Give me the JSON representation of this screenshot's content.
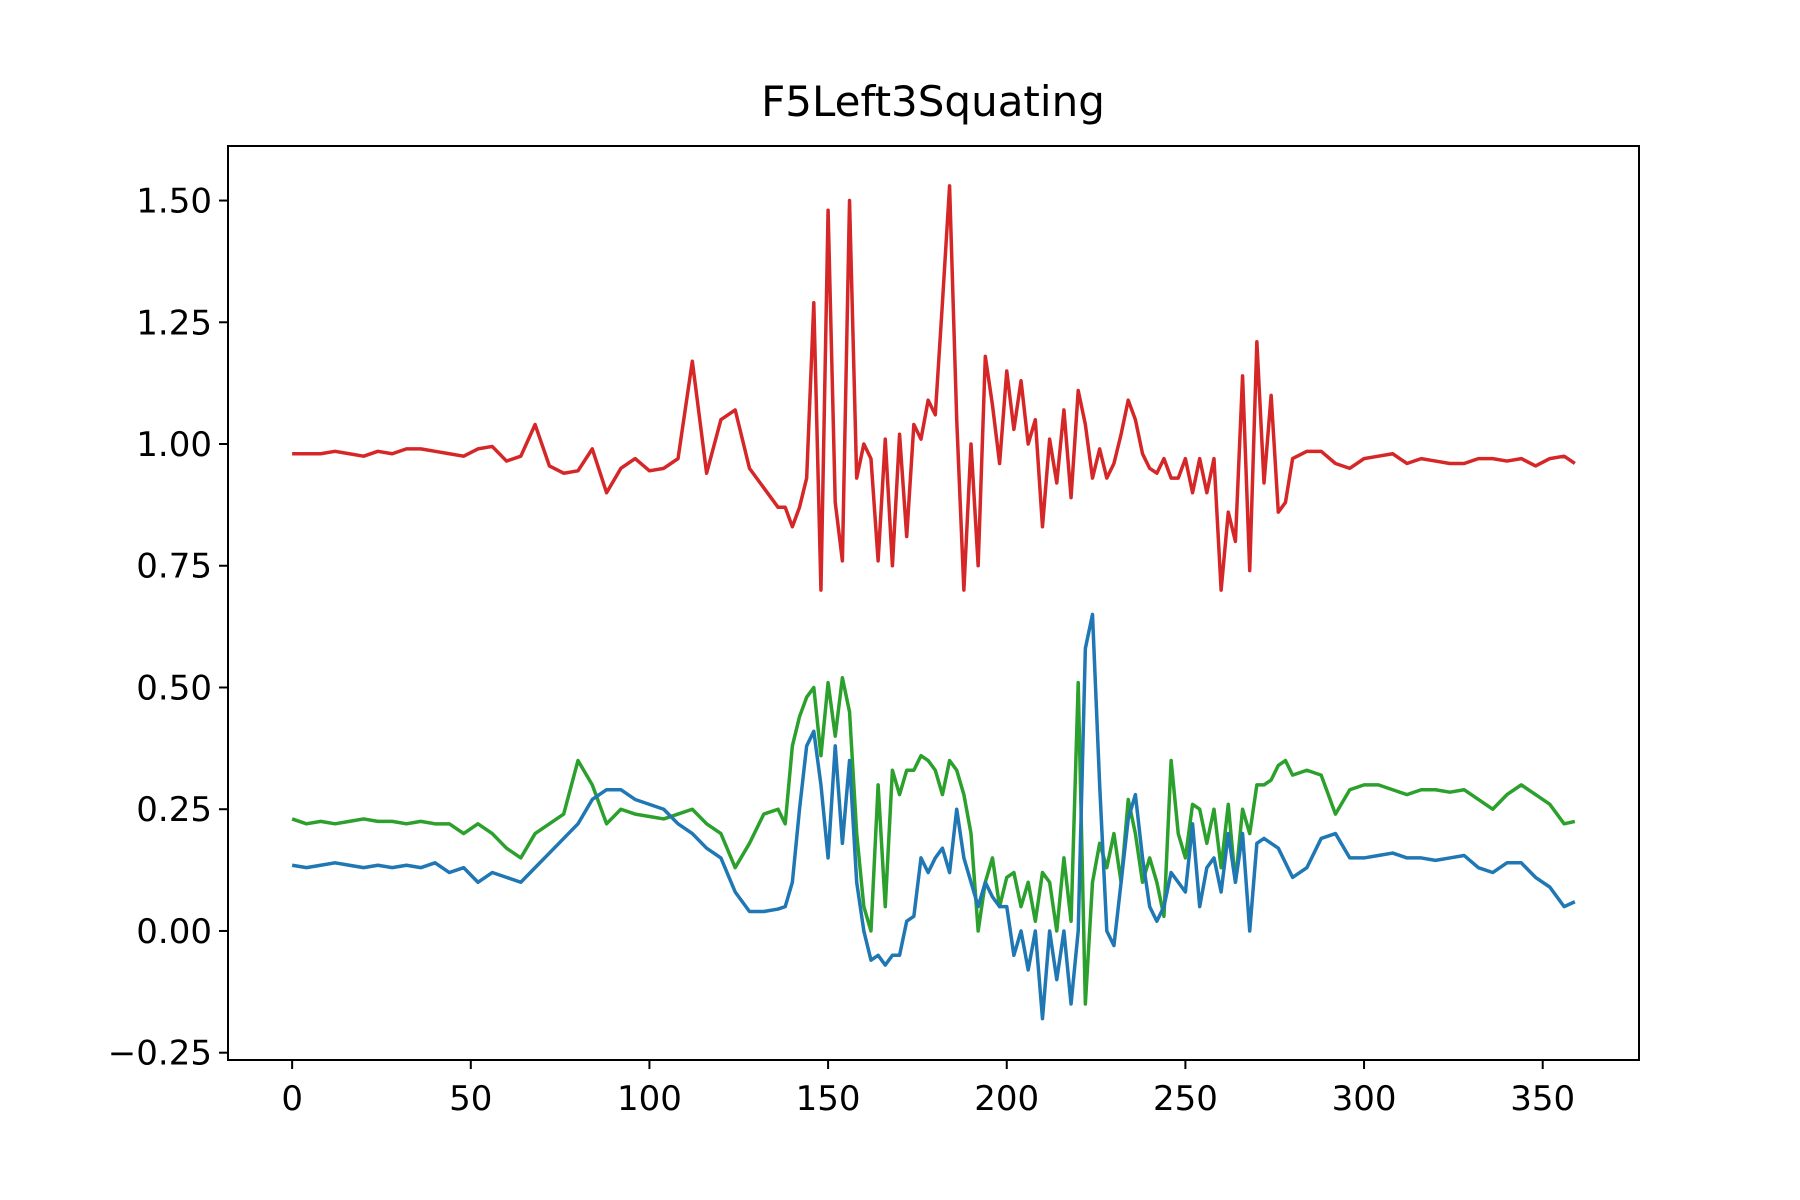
{
  "chart_data": {
    "type": "line",
    "title": "F5Left3Squating",
    "x": [
      0,
      4,
      8,
      12,
      16,
      20,
      24,
      28,
      32,
      36,
      40,
      44,
      48,
      52,
      56,
      60,
      64,
      68,
      72,
      76,
      80,
      84,
      88,
      92,
      96,
      100,
      104,
      108,
      112,
      116,
      120,
      124,
      128,
      132,
      136,
      138,
      140,
      142,
      144,
      146,
      148,
      150,
      152,
      154,
      156,
      158,
      160,
      162,
      164,
      166,
      168,
      170,
      172,
      174,
      176,
      178,
      180,
      182,
      184,
      186,
      188,
      190,
      192,
      194,
      196,
      198,
      200,
      202,
      204,
      206,
      208,
      210,
      212,
      214,
      216,
      218,
      220,
      222,
      224,
      226,
      228,
      230,
      232,
      234,
      236,
      238,
      240,
      242,
      244,
      246,
      248,
      250,
      252,
      254,
      256,
      258,
      260,
      262,
      264,
      266,
      268,
      270,
      272,
      274,
      276,
      278,
      280,
      284,
      288,
      292,
      296,
      300,
      304,
      308,
      312,
      316,
      320,
      324,
      328,
      332,
      336,
      340,
      344,
      348,
      352,
      356,
      359
    ],
    "series": [
      {
        "color": "#d62728",
        "values": [
          0.98,
          0.98,
          0.98,
          0.985,
          0.98,
          0.975,
          0.985,
          0.98,
          0.99,
          0.99,
          0.985,
          0.98,
          0.975,
          0.99,
          0.995,
          0.965,
          0.975,
          1.04,
          0.955,
          0.94,
          0.945,
          0.99,
          0.9,
          0.95,
          0.97,
          0.945,
          0.95,
          0.97,
          1.17,
          0.94,
          1.05,
          1.07,
          0.95,
          0.91,
          0.87,
          0.87,
          0.83,
          0.87,
          0.93,
          1.29,
          0.7,
          1.48,
          0.88,
          0.76,
          1.5,
          0.93,
          1.0,
          0.97,
          0.76,
          1.01,
          0.75,
          1.02,
          0.81,
          1.04,
          1.01,
          1.09,
          1.06,
          1.29,
          1.53,
          1.05,
          0.7,
          1.0,
          0.75,
          1.18,
          1.08,
          0.96,
          1.15,
          1.03,
          1.13,
          1.0,
          1.05,
          0.83,
          1.01,
          0.92,
          1.07,
          0.89,
          1.11,
          1.04,
          0.93,
          0.99,
          0.93,
          0.96,
          1.02,
          1.09,
          1.05,
          0.98,
          0.95,
          0.94,
          0.97,
          0.93,
          0.93,
          0.97,
          0.9,
          0.97,
          0.9,
          0.97,
          0.7,
          0.86,
          0.8,
          1.14,
          0.74,
          1.21,
          0.92,
          1.1,
          0.86,
          0.88,
          0.97,
          0.985,
          0.985,
          0.96,
          0.95,
          0.97,
          0.975,
          0.98,
          0.96,
          0.97,
          0.965,
          0.96,
          0.96,
          0.97,
          0.97,
          0.965,
          0.97,
          0.955,
          0.97,
          0.975,
          0.96
        ]
      },
      {
        "color": "#2ca02c",
        "values": [
          0.23,
          0.22,
          0.225,
          0.22,
          0.225,
          0.23,
          0.225,
          0.225,
          0.22,
          0.225,
          0.22,
          0.22,
          0.2,
          0.22,
          0.2,
          0.17,
          0.15,
          0.2,
          0.22,
          0.24,
          0.35,
          0.3,
          0.22,
          0.25,
          0.24,
          0.235,
          0.23,
          0.24,
          0.25,
          0.22,
          0.2,
          0.13,
          0.18,
          0.24,
          0.25,
          0.22,
          0.38,
          0.44,
          0.48,
          0.5,
          0.36,
          0.51,
          0.4,
          0.52,
          0.45,
          0.2,
          0.05,
          0.0,
          0.3,
          0.05,
          0.33,
          0.28,
          0.33,
          0.33,
          0.36,
          0.35,
          0.33,
          0.28,
          0.35,
          0.33,
          0.28,
          0.2,
          0.0,
          0.1,
          0.15,
          0.05,
          0.11,
          0.12,
          0.05,
          0.1,
          0.02,
          0.12,
          0.1,
          0.0,
          0.15,
          0.02,
          0.51,
          -0.15,
          0.1,
          0.18,
          0.13,
          0.2,
          0.1,
          0.27,
          0.2,
          0.1,
          0.15,
          0.1,
          0.03,
          0.35,
          0.2,
          0.15,
          0.26,
          0.25,
          0.18,
          0.25,
          0.13,
          0.26,
          0.1,
          0.25,
          0.2,
          0.3,
          0.3,
          0.31,
          0.34,
          0.35,
          0.32,
          0.33,
          0.32,
          0.24,
          0.29,
          0.3,
          0.3,
          0.29,
          0.28,
          0.29,
          0.29,
          0.285,
          0.29,
          0.27,
          0.25,
          0.28,
          0.3,
          0.28,
          0.26,
          0.22,
          0.225
        ]
      },
      {
        "color": "#1f77b4",
        "values": [
          0.135,
          0.13,
          0.135,
          0.14,
          0.135,
          0.13,
          0.135,
          0.13,
          0.135,
          0.13,
          0.14,
          0.12,
          0.13,
          0.1,
          0.12,
          0.11,
          0.1,
          0.13,
          0.16,
          0.19,
          0.22,
          0.27,
          0.29,
          0.29,
          0.27,
          0.26,
          0.25,
          0.22,
          0.2,
          0.17,
          0.15,
          0.08,
          0.04,
          0.04,
          0.045,
          0.05,
          0.1,
          0.25,
          0.38,
          0.41,
          0.3,
          0.15,
          0.38,
          0.18,
          0.35,
          0.1,
          0.0,
          -0.06,
          -0.05,
          -0.07,
          -0.05,
          -0.05,
          0.02,
          0.03,
          0.15,
          0.12,
          0.15,
          0.17,
          0.12,
          0.25,
          0.15,
          0.1,
          0.05,
          0.1,
          0.07,
          0.05,
          0.05,
          -0.05,
          0.0,
          -0.08,
          0.0,
          -0.18,
          0.0,
          -0.1,
          0.0,
          -0.15,
          0.0,
          0.58,
          0.65,
          0.3,
          0.0,
          -0.03,
          0.1,
          0.23,
          0.28,
          0.15,
          0.05,
          0.02,
          0.05,
          0.12,
          0.1,
          0.08,
          0.22,
          0.05,
          0.13,
          0.15,
          0.08,
          0.2,
          0.1,
          0.2,
          0.0,
          0.18,
          0.19,
          0.18,
          0.17,
          0.14,
          0.11,
          0.13,
          0.19,
          0.2,
          0.15,
          0.15,
          0.155,
          0.16,
          0.15,
          0.15,
          0.145,
          0.15,
          0.155,
          0.13,
          0.12,
          0.14,
          0.14,
          0.11,
          0.09,
          0.05,
          0.06
        ]
      }
    ],
    "xlim": [
      -17.95,
      376.95
    ],
    "ylim": [
      -0.265,
      1.612
    ],
    "xticks": [
      0,
      50,
      100,
      150,
      200,
      250,
      300,
      350
    ],
    "yticks": [
      {
        "value": -0.25,
        "label": "−0.25"
      },
      {
        "value": 0,
        "label": "0.00"
      },
      {
        "value": 0.25,
        "label": "0.25"
      },
      {
        "value": 0.5,
        "label": "0.50"
      },
      {
        "value": 0.75,
        "label": "0.75"
      },
      {
        "value": 1,
        "label": "1.00"
      },
      {
        "value": 1.25,
        "label": "1.25"
      },
      {
        "value": 1.5,
        "label": "1.50"
      }
    ]
  }
}
